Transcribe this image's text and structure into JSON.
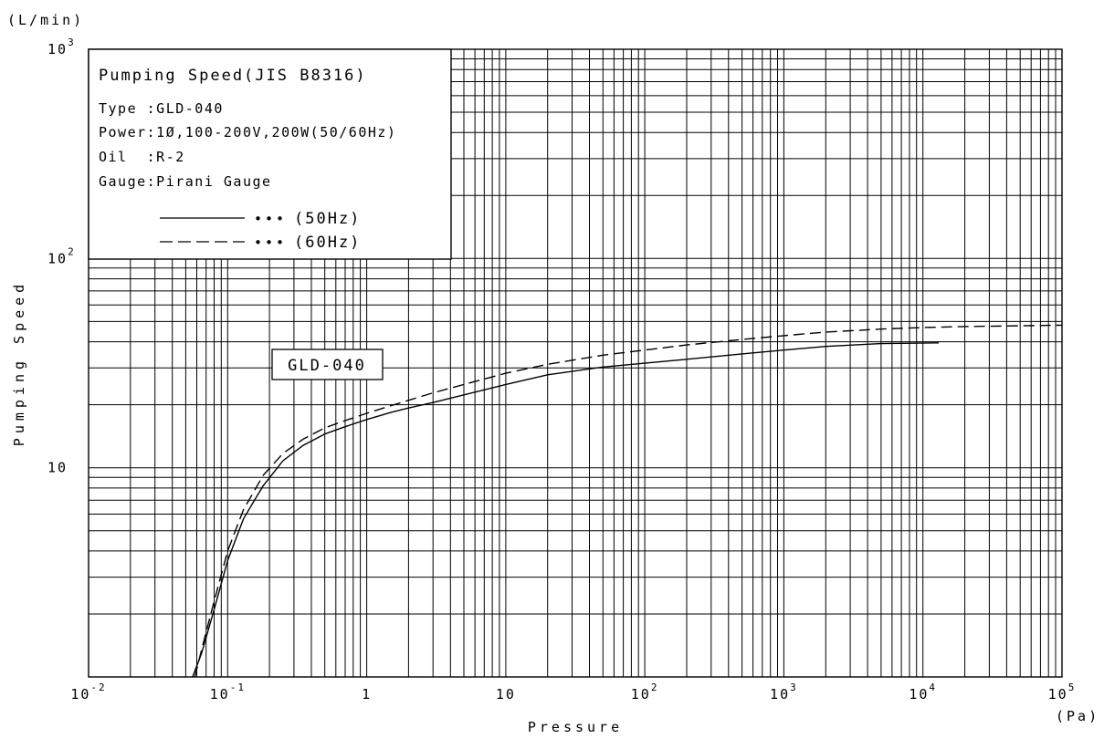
{
  "chart_data": {
    "type": "line",
    "title": "Pumping Speed(JIS B8316)",
    "info_lines": [
      "Type :GLD-040",
      "Power:1Ø,100-200V,200W(50/60Hz)",
      "Oil  :R-2",
      "Gauge:Pirani Gauge"
    ],
    "xlabel": "Pressure",
    "xunit": "(Pa)",
    "ylabel": "Pumping Speed",
    "yunit": "(L/min)",
    "x_scale": "log",
    "y_scale": "log",
    "xlim": [
      0.01,
      100000
    ],
    "ylim": [
      1,
      1000
    ],
    "x_ticks": [
      {
        "base": "10",
        "exp": "-2"
      },
      {
        "base": "10",
        "exp": "-1"
      },
      {
        "base": "1",
        "exp": ""
      },
      {
        "base": "10",
        "exp": ""
      },
      {
        "base": "10",
        "exp": "2"
      },
      {
        "base": "10",
        "exp": "3"
      },
      {
        "base": "10",
        "exp": "4"
      },
      {
        "base": "10",
        "exp": "5"
      }
    ],
    "y_ticks": [
      {
        "value": 10,
        "base": "10",
        "exp": ""
      },
      {
        "value": 100,
        "base": "10",
        "exp": "2"
      },
      {
        "value": 1000,
        "base": "10",
        "exp": "3"
      }
    ],
    "grid": true,
    "annotation": "GLD-040",
    "series": [
      {
        "name": "(50Hz)",
        "line": "solid",
        "x": [
          0.056,
          0.065,
          0.08,
          0.1,
          0.13,
          0.18,
          0.25,
          0.35,
          0.5,
          0.7,
          1,
          1.5,
          2,
          3,
          5,
          10,
          20,
          50,
          100,
          200,
          500,
          1000,
          2000,
          5000,
          13000
        ],
        "y": [
          1,
          1.3,
          2.1,
          3.6,
          5.7,
          8.2,
          10.8,
          12.8,
          14.5,
          15.7,
          17,
          18.4,
          19.3,
          20.5,
          22.3,
          25,
          27.8,
          30.3,
          31.6,
          33,
          35,
          36.5,
          38,
          39.2,
          39.5
        ]
      },
      {
        "name": "(60Hz)",
        "line": "dashed",
        "x": [
          0.058,
          0.065,
          0.08,
          0.1,
          0.13,
          0.18,
          0.25,
          0.35,
          0.5,
          0.7,
          1,
          1.5,
          2,
          3,
          5,
          10,
          20,
          50,
          100,
          200,
          500,
          1000,
          2000,
          5000,
          10000,
          20000,
          50000,
          100000
        ],
        "y": [
          1,
          1.35,
          2.3,
          4,
          6.3,
          9.2,
          11.7,
          13.7,
          15.5,
          16.8,
          18.2,
          19.8,
          21,
          22.8,
          25,
          28.3,
          31.2,
          34.5,
          36.5,
          38.6,
          41,
          42.8,
          44.5,
          46,
          46.8,
          47.3,
          47.7,
          48
        ]
      }
    ]
  }
}
